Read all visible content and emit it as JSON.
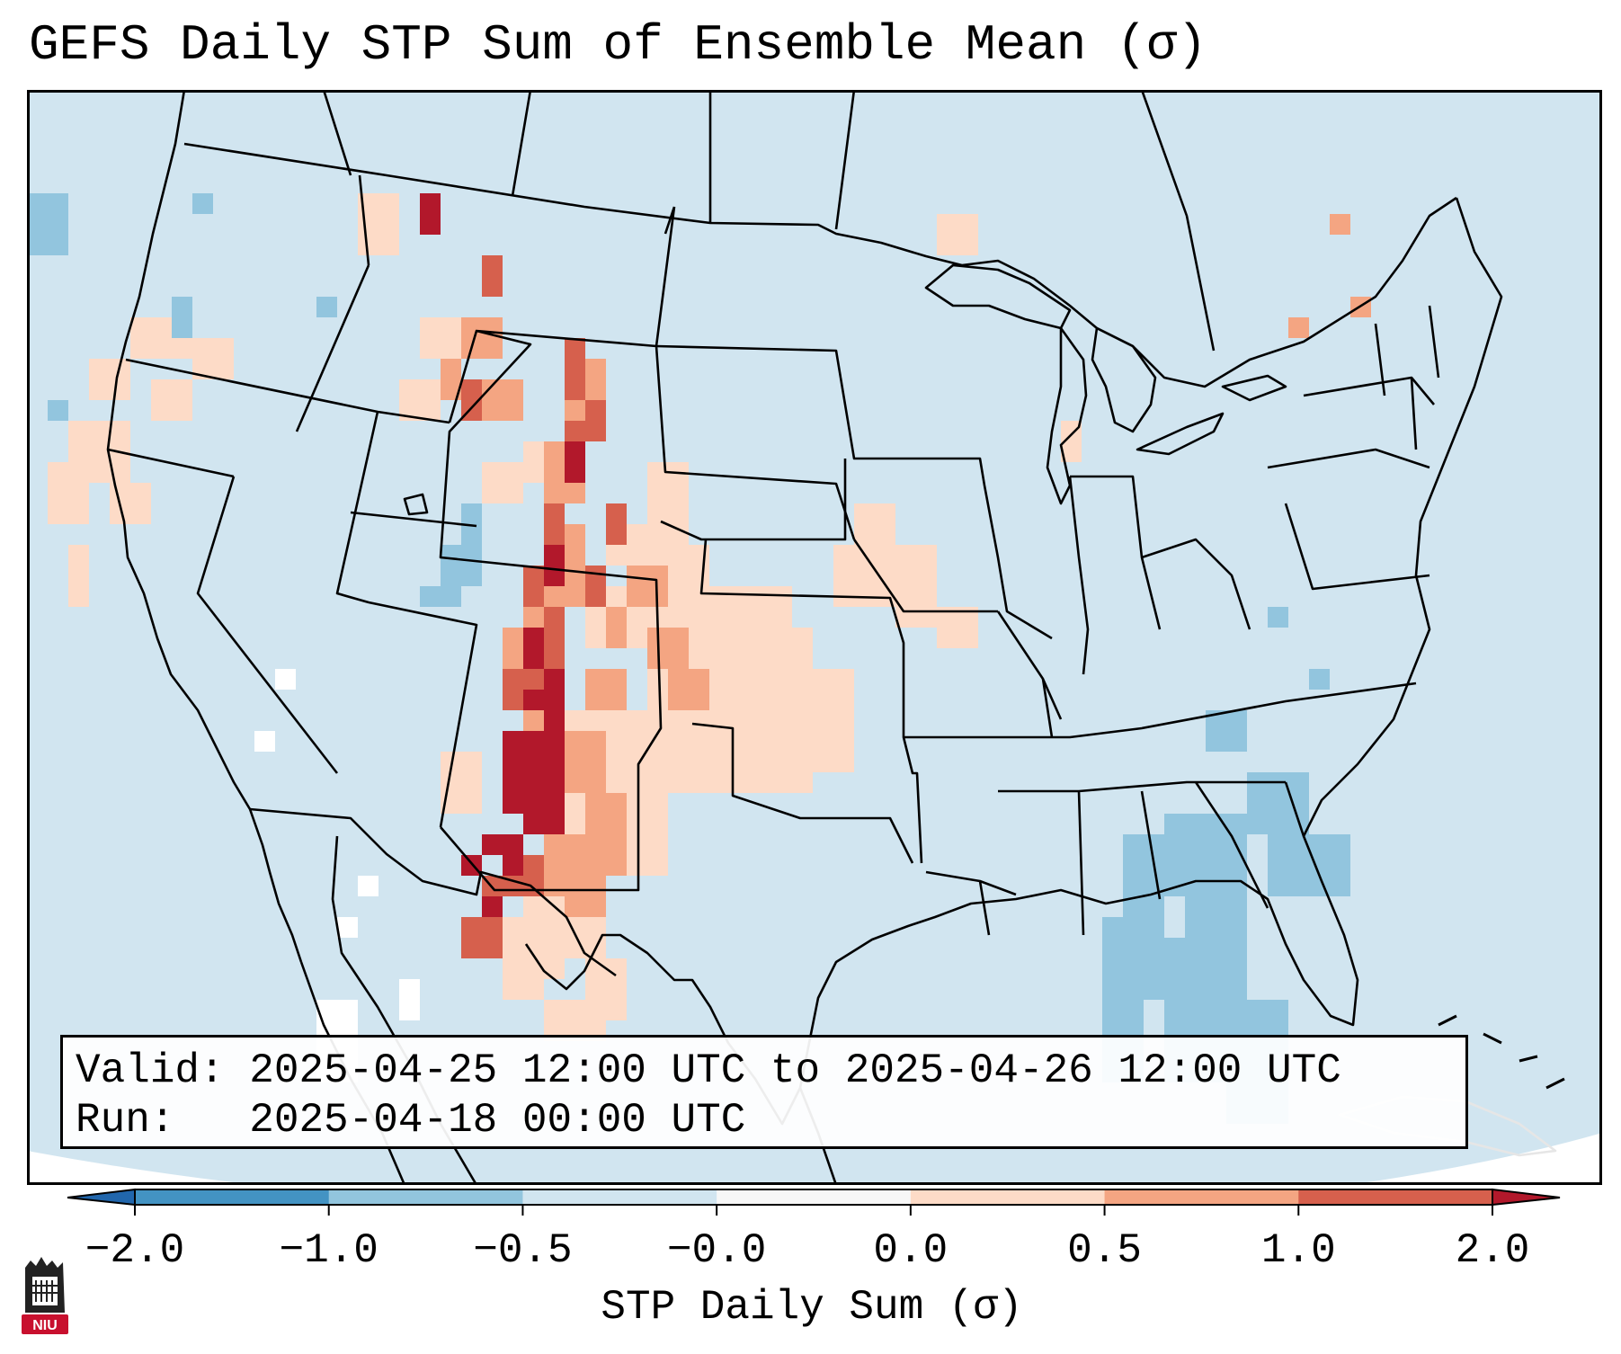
{
  "title": "GEFS Daily STP Sum of Ensemble Mean (σ)",
  "info": {
    "valid": "Valid: 2025-04-25 12:00 UTC to 2025-04-26 12:00 UTC",
    "run": "Run:   2025-04-18 00:00 UTC"
  },
  "colorbar": {
    "label": "STP Daily Sum (σ)",
    "ticks": [
      "−2.0",
      "−1.0",
      "−0.5",
      "−0.0",
      "0.0",
      "0.5",
      "1.0",
      "2.0"
    ],
    "bins": [
      {
        "range": "< -2.0",
        "color": "#2166ac"
      },
      {
        "range": "-2.0 to -1.0",
        "color": "#4393c3"
      },
      {
        "range": "-1.0 to -0.5",
        "color": "#92c5de"
      },
      {
        "range": "-0.5 to -0.0",
        "color": "#d1e5f0"
      },
      {
        "range": "-0.0 to 0.0",
        "color": "#f7f7f7"
      },
      {
        "range": "0.0 to 0.5",
        "color": "#fddbc7"
      },
      {
        "range": "0.5 to 1.0",
        "color": "#f4a582"
      },
      {
        "range": "1.0 to 2.0",
        "color": "#d6604d"
      },
      {
        "range": "> 2.0",
        "color": "#b2182b"
      }
    ]
  },
  "logo": {
    "text": "NIU"
  },
  "map": {
    "projection": "Lambert Conformal",
    "region": "Contiguous United States",
    "background_color": "#d1e5f0",
    "hotspots": [
      {
        "area": "Texas Panhandle / eastern New Mexico",
        "category": "> 2.0"
      },
      {
        "area": "Eastern Colorado / western Kansas",
        "category": "1.0 to 2.0"
      },
      {
        "area": "Eastern Wyoming / Nebraska Panhandle",
        "category": "1.0 to 2.0"
      },
      {
        "area": "Oklahoma / Kansas / Missouri",
        "category": "0.0 to 0.5"
      },
      {
        "area": "Gulf of Mexico east / Florida / Bahamas",
        "category": "-1.0 to -0.5"
      }
    ]
  }
}
